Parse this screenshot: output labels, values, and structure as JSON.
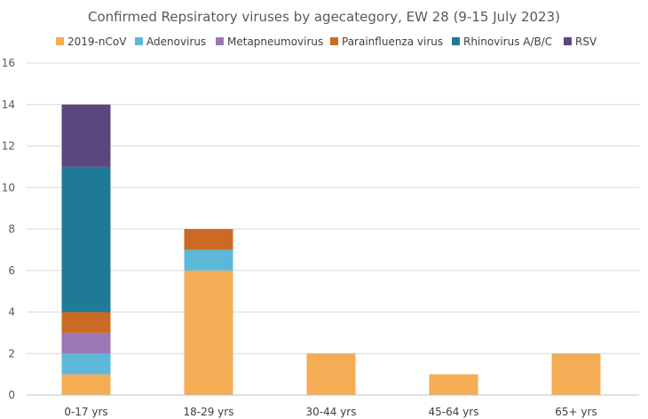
{
  "chart_data": {
    "type": "bar",
    "stacked": true,
    "title": "Confirmed Repsiratory viruses by agecategory, EW 28 (9-15 July 2023)",
    "xlabel": "",
    "ylabel": "",
    "ylim": [
      0,
      16
    ],
    "yticks": [
      0,
      2,
      4,
      6,
      8,
      10,
      12,
      14,
      16
    ],
    "grid": true,
    "legend_position": "top",
    "categories": [
      "0-17 yrs",
      "18-29 yrs",
      "30-44 yrs",
      "45-64 yrs",
      "65+ yrs"
    ],
    "series": [
      {
        "name": "2019-nCoV",
        "color": "#f4ac55",
        "values": [
          1,
          6,
          2,
          1,
          2
        ]
      },
      {
        "name": "Adenovirus",
        "color": "#5bb8d8",
        "values": [
          1,
          1,
          0,
          0,
          0
        ]
      },
      {
        "name": "Metapneumovirus",
        "color": "#9a77b5",
        "values": [
          1,
          0,
          0,
          0,
          0
        ]
      },
      {
        "name": "Parainfluenza virus",
        "color": "#cc6a25",
        "values": [
          1,
          1,
          0,
          0,
          0
        ]
      },
      {
        "name": "Rhinovirus A/B/C",
        "color": "#1f7a95",
        "values": [
          7,
          0,
          0,
          0,
          0
        ]
      },
      {
        "name": "RSV",
        "color": "#5c4680",
        "values": [
          3,
          0,
          0,
          0,
          0
        ]
      }
    ]
  }
}
